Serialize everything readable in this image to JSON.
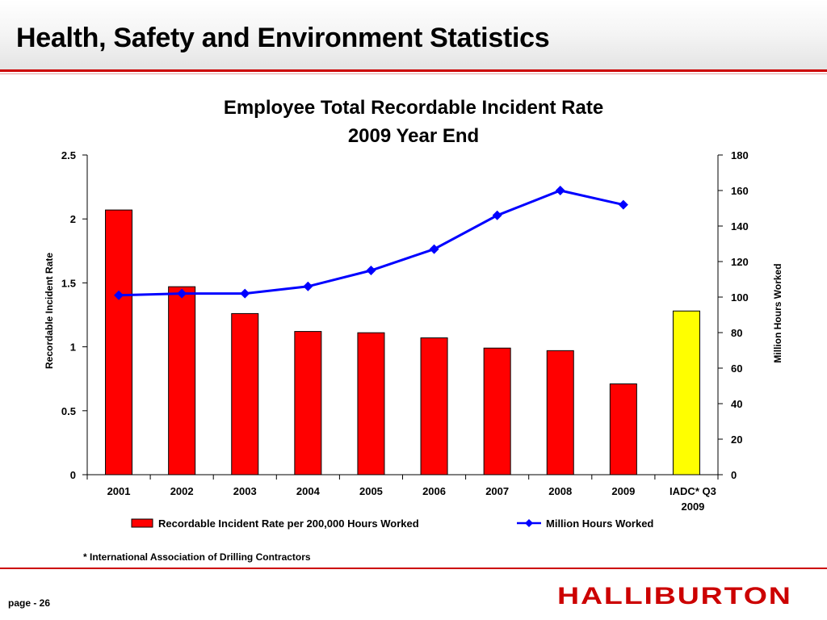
{
  "slide": {
    "title": "Health, Safety and Environment Statistics",
    "footnote": "* International Association of Drilling Contractors",
    "page_number": "page - 26",
    "logo_text": "HALLIBURTON",
    "accent_color": "#cc0000"
  },
  "chart_data": {
    "type": "bar",
    "title": "Employee Total Recordable Incident Rate",
    "subtitle": "2009 Year End",
    "categories": [
      "2001",
      "2002",
      "2003",
      "2004",
      "2005",
      "2006",
      "2007",
      "2008",
      "2009",
      "IADC*  Q3 2009"
    ],
    "category_lines": [
      [
        "2001"
      ],
      [
        "2002"
      ],
      [
        "2003"
      ],
      [
        "2004"
      ],
      [
        "2005"
      ],
      [
        "2006"
      ],
      [
        "2007"
      ],
      [
        "2008"
      ],
      [
        "2009"
      ],
      [
        "IADC*  Q3",
        "2009"
      ]
    ],
    "ylabel": "Recordable Incident Rate",
    "y2label": "Million Hours Worked",
    "ylim": [
      0,
      2.5
    ],
    "y2lim": [
      0,
      180
    ],
    "yticks": [
      0,
      0.5,
      1,
      1.5,
      2,
      2.5
    ],
    "yticklabels": [
      "0",
      "0.5",
      "1",
      "1.5",
      "2",
      "2.5"
    ],
    "y2ticks": [
      0,
      20,
      40,
      60,
      80,
      100,
      120,
      140,
      160,
      180
    ],
    "y2ticklabels": [
      "0",
      "20",
      "40",
      "60",
      "80",
      "100",
      "120",
      "140",
      "160",
      "180"
    ],
    "series": [
      {
        "name": "Recordable Incident Rate per 200,000 Hours Worked",
        "type": "bar",
        "axis": "left",
        "color": "#ff0000",
        "highlight_color": "#ffff00",
        "values": [
          2.07,
          1.47,
          1.26,
          1.12,
          1.11,
          1.07,
          0.99,
          0.97,
          0.71,
          1.28
        ]
      },
      {
        "name": "Million Hours Worked",
        "type": "line",
        "axis": "right",
        "color": "#0000ff",
        "values": [
          101,
          102,
          102,
          106,
          115,
          127,
          146,
          160,
          152,
          null
        ]
      }
    ],
    "legend_position": "bottom",
    "grid": false
  }
}
